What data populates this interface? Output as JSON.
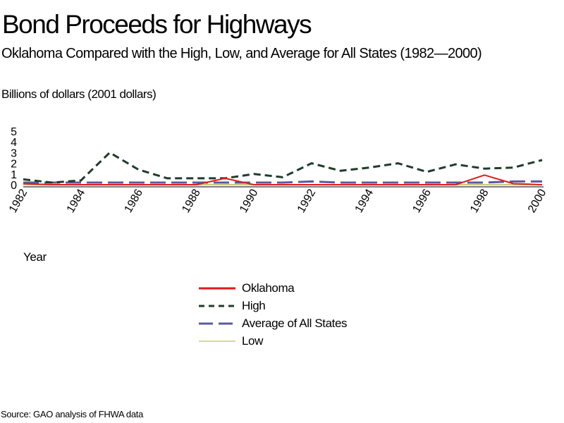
{
  "title": "Bond Proceeds for Highways",
  "subtitle": "Oklahoma Compared with the High, Low, and Average for All States (1982—2000)",
  "y_axis_label": "Billions of dollars (2001 dollars)",
  "x_axis_label": "Year",
  "source": "Source: GAO analysis of FHWA data",
  "chart_data": {
    "type": "line",
    "x": [
      1982,
      1983,
      1984,
      1985,
      1986,
      1987,
      1988,
      1989,
      1990,
      1991,
      1992,
      1993,
      1994,
      1995,
      1996,
      1997,
      1998,
      1999,
      2000
    ],
    "x_tick_labels": [
      "1982",
      "1984",
      "1986",
      "1988",
      "1990",
      "1992",
      "1994",
      "1996",
      "1998",
      "2000"
    ],
    "y_tick_labels": [
      "0",
      "1",
      "2",
      "3",
      "4",
      "5"
    ],
    "ylim": [
      0,
      5
    ],
    "xlim": [
      1982,
      2000
    ],
    "grid": false,
    "legend_position": "bottom-center",
    "series": [
      {
        "name": "Oklahoma",
        "color": "#e31a1c",
        "dash": "solid",
        "values": [
          0.1,
          0.0,
          0.0,
          0.0,
          0.0,
          0.0,
          0.0,
          0.6,
          0.0,
          0.0,
          0.0,
          0.0,
          0.0,
          0.0,
          0.0,
          0.0,
          0.9,
          0.1,
          0.0
        ]
      },
      {
        "name": "High",
        "color": "#1f3d2b",
        "dash": "dashed",
        "values": [
          0.5,
          0.2,
          0.4,
          3.0,
          1.4,
          0.6,
          0.6,
          0.6,
          1.0,
          0.7,
          2.0,
          1.3,
          1.6,
          2.0,
          1.2,
          1.9,
          1.5,
          1.6,
          2.3
        ]
      },
      {
        "name": "Average of All States",
        "color": "#5a5a9e",
        "dash": "longdash",
        "values": [
          0.2,
          0.2,
          0.2,
          0.2,
          0.2,
          0.2,
          0.2,
          0.2,
          0.2,
          0.2,
          0.3,
          0.2,
          0.2,
          0.2,
          0.2,
          0.2,
          0.2,
          0.3,
          0.3
        ]
      },
      {
        "name": "Low",
        "color": "#c9c97a",
        "dash": "solid",
        "values": [
          0.0,
          0.0,
          0.0,
          0.0,
          0.0,
          0.0,
          0.0,
          0.0,
          0.0,
          0.0,
          0.0,
          0.0,
          0.0,
          0.0,
          0.0,
          0.0,
          0.0,
          0.0,
          0.0
        ]
      }
    ]
  }
}
